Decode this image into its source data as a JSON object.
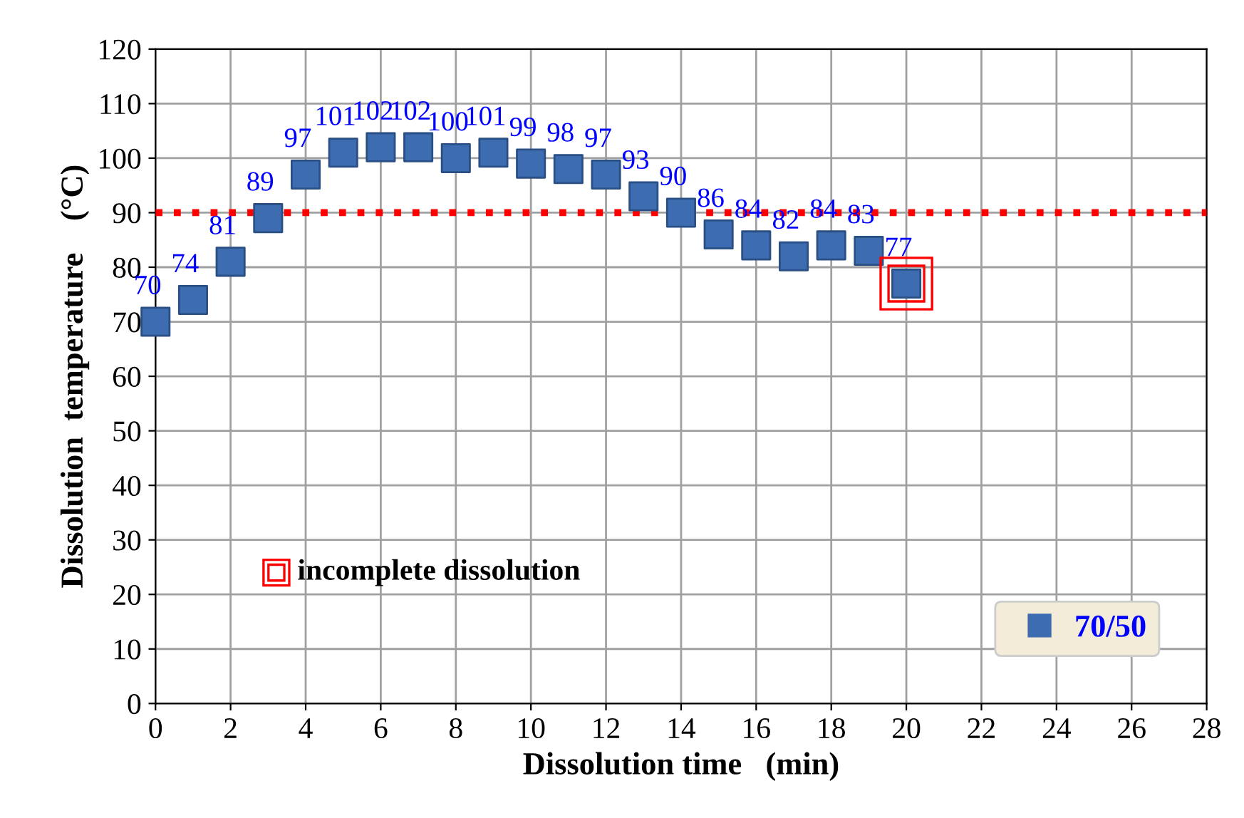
{
  "chart_data": {
    "type": "scatter",
    "xlabel": "Dissolution time   (min)",
    "ylabel": "Dissolution  temperature    (°C)",
    "x": [
      0,
      1,
      2,
      3,
      4,
      5,
      6,
      7,
      8,
      9,
      10,
      11,
      12,
      13,
      14,
      15,
      16,
      17,
      18,
      19,
      20
    ],
    "series": [
      {
        "name": "70/50",
        "color": "#3d6db0",
        "values": [
          70,
          74,
          81,
          89,
          97,
          101,
          102,
          102,
          100,
          101,
          99,
          98,
          97,
          93,
          90,
          86,
          84,
          82,
          84,
          83,
          77
        ]
      }
    ],
    "marker": "square",
    "data_labels": true,
    "xlim": [
      0,
      28
    ],
    "xticks": [
      0,
      2,
      4,
      6,
      8,
      10,
      12,
      14,
      16,
      18,
      20,
      22,
      24,
      26,
      28
    ],
    "ylim": [
      0,
      120
    ],
    "yticks": [
      0,
      10,
      20,
      30,
      40,
      50,
      60,
      70,
      80,
      90,
      100,
      110,
      120
    ],
    "grid": true,
    "legend": "bottom right",
    "ref_lines": [
      {
        "axis": "y",
        "value": 90,
        "color": "#ff0000",
        "line_style": "dotted"
      }
    ],
    "annotations": [
      "incomplete dissolution"
    ]
  }
}
